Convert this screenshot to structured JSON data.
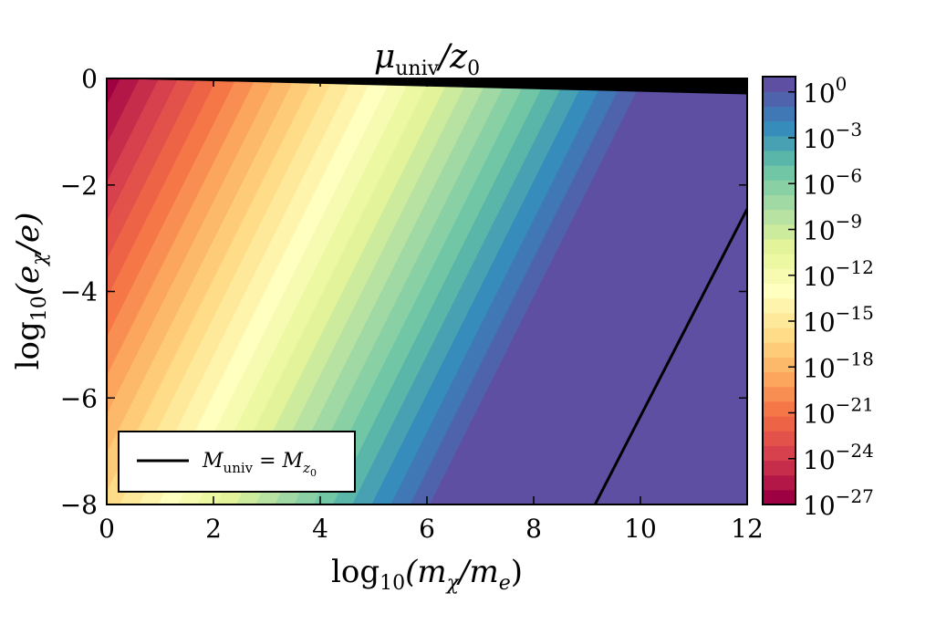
{
  "chart_data": {
    "type": "heatmap",
    "title": "μuniv/z0",
    "title_parts": {
      "main": "μ",
      "sub": "univ",
      "tail": "/z",
      "tail_sub": "0"
    },
    "xlabel": "log10(mχ/me)",
    "xlabel_parts": {
      "pre": "log",
      "pre_sub": "10",
      "mid": "(m",
      "mid_sub": "χ",
      "slash": "/m",
      "slash_sub": "e",
      "end": ")"
    },
    "ylabel": "log10(eχ/e)",
    "ylabel_parts": {
      "pre": "log",
      "pre_sub": "10",
      "mid": "(e",
      "mid_sub": "χ",
      "end": "/e)"
    },
    "xlim": [
      0,
      12
    ],
    "ylim": [
      -8,
      0
    ],
    "xticks": [
      "0",
      "2",
      "4",
      "6",
      "8",
      "10",
      "12"
    ],
    "yticks": [
      "0",
      "−2",
      "−4",
      "−6",
      "−8"
    ],
    "colorbar": {
      "scale": "log",
      "range_exponent": [
        -27,
        1
      ],
      "tick_base": "10",
      "tick_exponents": [
        "0",
        "−3",
        "−6",
        "−9",
        "−12",
        "−15",
        "−18",
        "−21",
        "−24",
        "−27"
      ],
      "colormap": "Spectral",
      "levels": 29
    },
    "field_model": {
      "description_exponent": "log10(μuniv/z0) ≈ -26.7 + 2.66·x - 1.33·y",
      "saturated_region": "right of line from (9.15, -8) to (12, -2.45) is at max level"
    },
    "overlays": [
      {
        "name": "Muniv = Mz0",
        "type": "line",
        "x": [
          9.15,
          12
        ],
        "y": [
          -8,
          -2.45
        ],
        "color": "#000000"
      },
      {
        "name": "excluded-region",
        "type": "fill",
        "x": [
          0,
          12,
          12
        ],
        "y": [
          0,
          -0.3,
          0
        ],
        "color": "#000000"
      }
    ],
    "legend": {
      "placement": "lower-left",
      "entries": [
        {
          "label": "Muniv = Mz0",
          "parts": {
            "a": "M",
            "a_sub": "univ",
            "eq": " = ",
            "b": "M",
            "b_sub": "z",
            "b_subsub": "0"
          }
        }
      ]
    },
    "grid": false
  }
}
